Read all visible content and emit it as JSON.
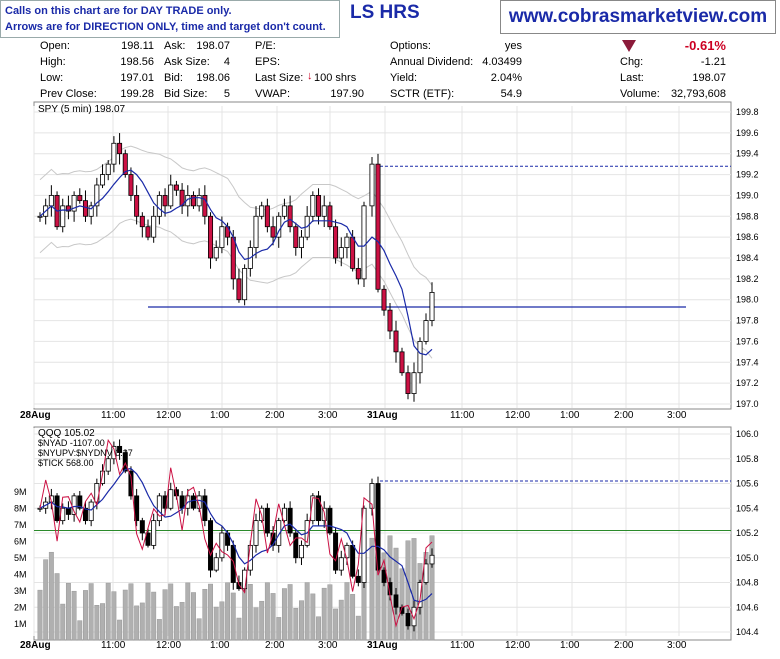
{
  "notice": {
    "line1": "Calls on this chart are for DAY TRADE only.",
    "line2": "Arrows are for DIRECTION ONLY, time and target don't count."
  },
  "title": "LS HRS",
  "website": "www.cobrasmarketview.com",
  "quote": {
    "open_label": "Open:",
    "open": "198.11",
    "high_label": "High:",
    "high": "198.56",
    "low_label": "Low:",
    "low": "197.01",
    "prev_label": "Prev Close:",
    "prev": "199.28",
    "ask_label": "Ask:",
    "ask": "198.07",
    "asksize_label": "Ask Size:",
    "asksize": "4",
    "bid_label": "Bid:",
    "bid": "198.06",
    "bidsize_label": "Bid Size:",
    "bidsize": "5",
    "pe_label": "P/E:",
    "eps_label": "EPS:",
    "lastsize_label": "Last Size:",
    "lastsize": "100 shrs",
    "vwap_label": "VWAP:",
    "vwap": "197.90",
    "options_label": "Options:",
    "options": "yes",
    "div_label": "Annual Dividend:",
    "div": "4.03499",
    "yield_label": "Yield:",
    "yield": "2.04%",
    "sctr_label": "SCTR (ETF):",
    "sctr": "54.9",
    "chgpct": "-0.61%",
    "chg_label": "Chg:",
    "chg": "-1.21",
    "last_label": "Last:",
    "last": "198.07",
    "volume_label": "Volume:",
    "volume": "32,793,608"
  },
  "colors": {
    "up": "#ffffff",
    "down": "#cc1144",
    "ma": "#1a2aa8",
    "band": "#c8c8c8",
    "guide": "#1a2aa8",
    "green": "#2a8a2a",
    "tick": "#cc1144",
    "volume": "#b0b0b0"
  },
  "chart_data": [
    {
      "type": "candlestick",
      "title": "SPY (5 min) 198.07",
      "ylim": [
        197.0,
        199.8
      ],
      "yticks": [
        "199.8",
        "199.6",
        "199.4",
        "199.2",
        "199.0",
        "198.8",
        "198.6",
        "198.4",
        "198.2",
        "198.0",
        "197.8",
        "197.6",
        "197.4",
        "197.2",
        "197.0"
      ],
      "xticks": [
        "28Aug",
        "11:00",
        "12:00",
        "1:00",
        "2:00",
        "3:00",
        "31Aug",
        "11:00",
        "12:00",
        "1:00",
        "2:00",
        "3:00"
      ],
      "horizontal_line": 197.93,
      "dashed_line": 199.28,
      "close": [
        198.8,
        198.9,
        199.0,
        198.7,
        198.9,
        198.85,
        199.0,
        198.95,
        198.8,
        198.9,
        199.1,
        199.2,
        199.3,
        199.5,
        199.4,
        199.2,
        199.0,
        198.8,
        198.7,
        198.6,
        198.8,
        199.0,
        198.9,
        199.1,
        199.05,
        198.9,
        199.0,
        198.9,
        199.0,
        198.8,
        198.4,
        198.5,
        198.7,
        198.6,
        198.2,
        198.0,
        198.3,
        198.5,
        198.8,
        198.9,
        198.7,
        198.6,
        198.8,
        198.9,
        198.7,
        198.5,
        198.6,
        198.8,
        199.0,
        198.8,
        198.9,
        198.7,
        198.4,
        198.5,
        198.6,
        198.3,
        198.2,
        198.9,
        199.3,
        198.1,
        197.9,
        197.7,
        197.5,
        197.3,
        197.1,
        197.3,
        197.6,
        197.8,
        198.07
      ]
    },
    {
      "type": "candlestick",
      "title": "QQQ 105.02",
      "legend": [
        "$NYAD -1107.00",
        "$NYUPV:$NYDNV 0.27",
        "$TICK 568.00"
      ],
      "ylim": [
        104.4,
        106.0
      ],
      "yticks": [
        "106.0",
        "105.8",
        "105.6",
        "105.4",
        "105.2",
        "105.0",
        "104.8",
        "104.6",
        "104.4"
      ],
      "volume_ticks": [
        "9M",
        "8M",
        "7M",
        "6M",
        "5M",
        "4M",
        "3M",
        "2M",
        "1M"
      ],
      "xticks": [
        "28Aug",
        "11:00",
        "12:00",
        "1:00",
        "2:00",
        "3:00",
        "31Aug",
        "11:00",
        "12:00",
        "1:00",
        "2:00",
        "3:00"
      ],
      "green_line": 105.22,
      "dashed_line": 105.62,
      "close": [
        105.4,
        105.45,
        105.5,
        105.3,
        105.4,
        105.35,
        105.5,
        105.4,
        105.3,
        105.45,
        105.6,
        105.7,
        105.8,
        105.9,
        105.85,
        105.7,
        105.5,
        105.3,
        105.2,
        105.1,
        105.3,
        105.5,
        105.4,
        105.55,
        105.5,
        105.4,
        105.5,
        105.4,
        105.5,
        105.3,
        104.9,
        105.0,
        105.2,
        105.1,
        104.8,
        104.75,
        104.9,
        105.1,
        105.3,
        105.4,
        105.2,
        105.1,
        105.3,
        105.4,
        105.2,
        105.0,
        105.1,
        105.3,
        105.5,
        105.3,
        105.4,
        105.2,
        104.9,
        105.0,
        105.1,
        104.85,
        104.8,
        105.4,
        105.6,
        104.9,
        104.8,
        104.7,
        104.6,
        104.55,
        104.45,
        104.6,
        104.8,
        104.95,
        105.02
      ]
    }
  ]
}
